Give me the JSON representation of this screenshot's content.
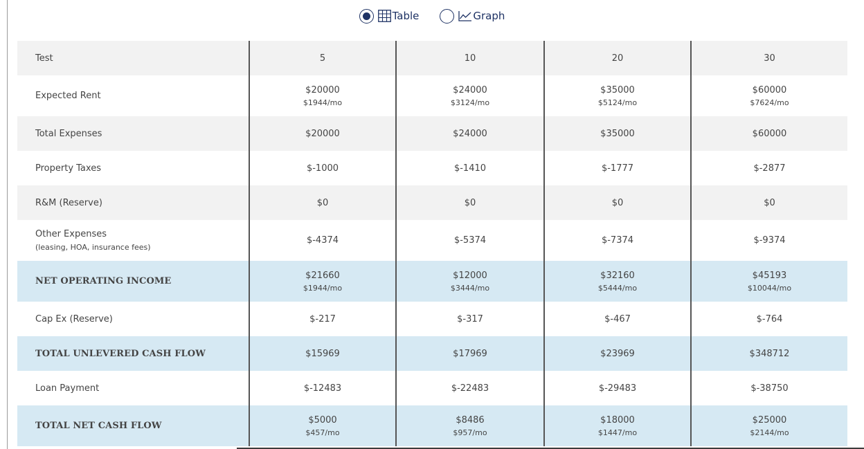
{
  "view_toggle": {
    "table_label": "Table",
    "graph_label": "Graph",
    "selected": "table"
  },
  "table": {
    "header": {
      "label": "Test",
      "values": [
        "5",
        "10",
        "20",
        "30"
      ]
    },
    "rows": [
      {
        "key": "expected_rent",
        "label": "Expected Rent",
        "style": "white",
        "values": [
          {
            "main": "$20000",
            "sub": "$1944/mo"
          },
          {
            "main": "$24000",
            "sub": "$3124/mo"
          },
          {
            "main": "$35000",
            "sub": "$5124/mo"
          },
          {
            "main": "$60000",
            "sub": "$7624/mo"
          }
        ]
      },
      {
        "key": "total_expenses",
        "label": "Total Expenses",
        "style": "shade",
        "values": [
          {
            "main": "$20000"
          },
          {
            "main": "$24000"
          },
          {
            "main": "$35000"
          },
          {
            "main": "$60000"
          }
        ]
      },
      {
        "key": "property_taxes",
        "label": "Property Taxes",
        "style": "white",
        "values": [
          {
            "main": "$-1000"
          },
          {
            "main": "$-1410"
          },
          {
            "main": "$-1777"
          },
          {
            "main": "$-2877"
          }
        ]
      },
      {
        "key": "rm_reserve",
        "label": "R&M (Reserve)",
        "style": "shade",
        "values": [
          {
            "main": "$0"
          },
          {
            "main": "$0"
          },
          {
            "main": "$0"
          },
          {
            "main": "$0"
          }
        ]
      },
      {
        "key": "other_expenses",
        "label": "Other Expenses",
        "sublabel": "(leasing, HOA, insurance fees)",
        "style": "white",
        "values": [
          {
            "main": "$-4374"
          },
          {
            "main": "$-5374"
          },
          {
            "main": "$-7374"
          },
          {
            "main": "$-9374"
          }
        ]
      },
      {
        "key": "net_operating_income",
        "label": "NET OPERATING INCOME",
        "style": "hl",
        "bold": true,
        "values": [
          {
            "main": "$21660",
            "sub": "$1944/mo"
          },
          {
            "main": "$12000",
            "sub": "$3444/mo"
          },
          {
            "main": "$32160",
            "sub": "$5444/mo"
          },
          {
            "main": "$45193",
            "sub": "$10044/mo"
          }
        ]
      },
      {
        "key": "cap_ex_reserve",
        "label": "Cap Ex (Reserve)",
        "style": "white",
        "values": [
          {
            "main": "$-217"
          },
          {
            "main": "$-317"
          },
          {
            "main": "$-467"
          },
          {
            "main": "$-764"
          }
        ]
      },
      {
        "key": "total_unlevered_cash_flow",
        "label": "TOTAL UNLEVERED CASH FLOW",
        "style": "hl",
        "bold": true,
        "values": [
          {
            "main": "$15969"
          },
          {
            "main": "$17969"
          },
          {
            "main": "$23969"
          },
          {
            "main": "$348712"
          }
        ]
      },
      {
        "key": "loan_payment",
        "label": "Loan Payment",
        "style": "white",
        "values": [
          {
            "main": "$-12483"
          },
          {
            "main": "$-22483"
          },
          {
            "main": "$-29483"
          },
          {
            "main": "$-38750"
          }
        ]
      },
      {
        "key": "total_net_cash_flow",
        "label": "TOTAL NET CASH FLOW",
        "style": "hl",
        "bold": true,
        "values": [
          {
            "main": "$5000",
            "sub": "$457/mo"
          },
          {
            "main": "$8486",
            "sub": "$957/mo"
          },
          {
            "main": "$18000",
            "sub": "$1447/mo"
          },
          {
            "main": "$25000",
            "sub": "$2144/mo"
          }
        ]
      }
    ]
  }
}
